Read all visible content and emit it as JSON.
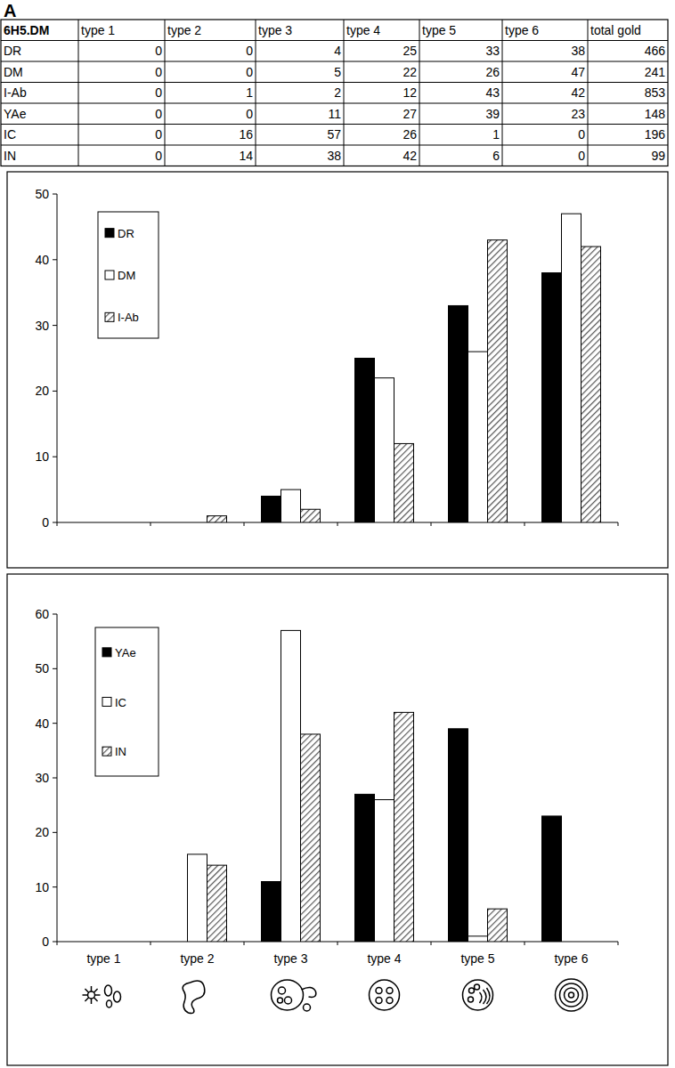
{
  "panel_label": "A",
  "table": {
    "header": [
      "6H5.DM",
      "type 1",
      "type 2",
      "type 3",
      "type 4",
      "type 5",
      "type 6",
      "total gold"
    ],
    "rows": [
      [
        "DR",
        0,
        0,
        4,
        25,
        33,
        38,
        466
      ],
      [
        "DM",
        0,
        0,
        5,
        22,
        26,
        47,
        241
      ],
      [
        "I-Ab",
        0,
        1,
        2,
        12,
        43,
        42,
        853
      ],
      [
        "YAe",
        0,
        0,
        11,
        27,
        39,
        23,
        148
      ],
      [
        "IC",
        0,
        16,
        57,
        26,
        1,
        0,
        196
      ],
      [
        "IN",
        0,
        14,
        38,
        42,
        6,
        0,
        99
      ]
    ]
  },
  "chart_data": [
    {
      "type": "bar",
      "categories": [
        null,
        null,
        null,
        null,
        null,
        null
      ],
      "series": [
        {
          "name": "DR",
          "color": "#000000",
          "values": [
            0,
            0,
            4,
            25,
            33,
            38
          ]
        },
        {
          "name": "DM",
          "color": "#ffffff",
          "values": [
            0,
            0,
            5,
            22,
            26,
            47
          ]
        },
        {
          "name": "I-Ab",
          "color": "#555555",
          "values": [
            0,
            1,
            2,
            12,
            43,
            42
          ]
        }
      ],
      "ylim": [
        0,
        50
      ],
      "yticks": [
        0,
        10,
        20,
        30,
        40,
        50
      ],
      "legend": "upper left",
      "tick_labels": "y"
    },
    {
      "type": "bar",
      "categories": [
        "type 1",
        "type 2",
        "type 3",
        "type 4",
        "type 5",
        "type 6"
      ],
      "series": [
        {
          "name": "YAe",
          "color": "#000000",
          "values": [
            0,
            0,
            11,
            27,
            39,
            23
          ]
        },
        {
          "name": "IC",
          "color": "#ffffff",
          "values": [
            0,
            16,
            57,
            26,
            1,
            0
          ]
        },
        {
          "name": "IN",
          "color": "#555555",
          "values": [
            0,
            14,
            38,
            42,
            6,
            0
          ]
        }
      ],
      "ylim": [
        0,
        60
      ],
      "yticks": [
        0,
        10,
        20,
        30,
        40,
        50,
        60
      ],
      "legend": "upper left"
    }
  ]
}
